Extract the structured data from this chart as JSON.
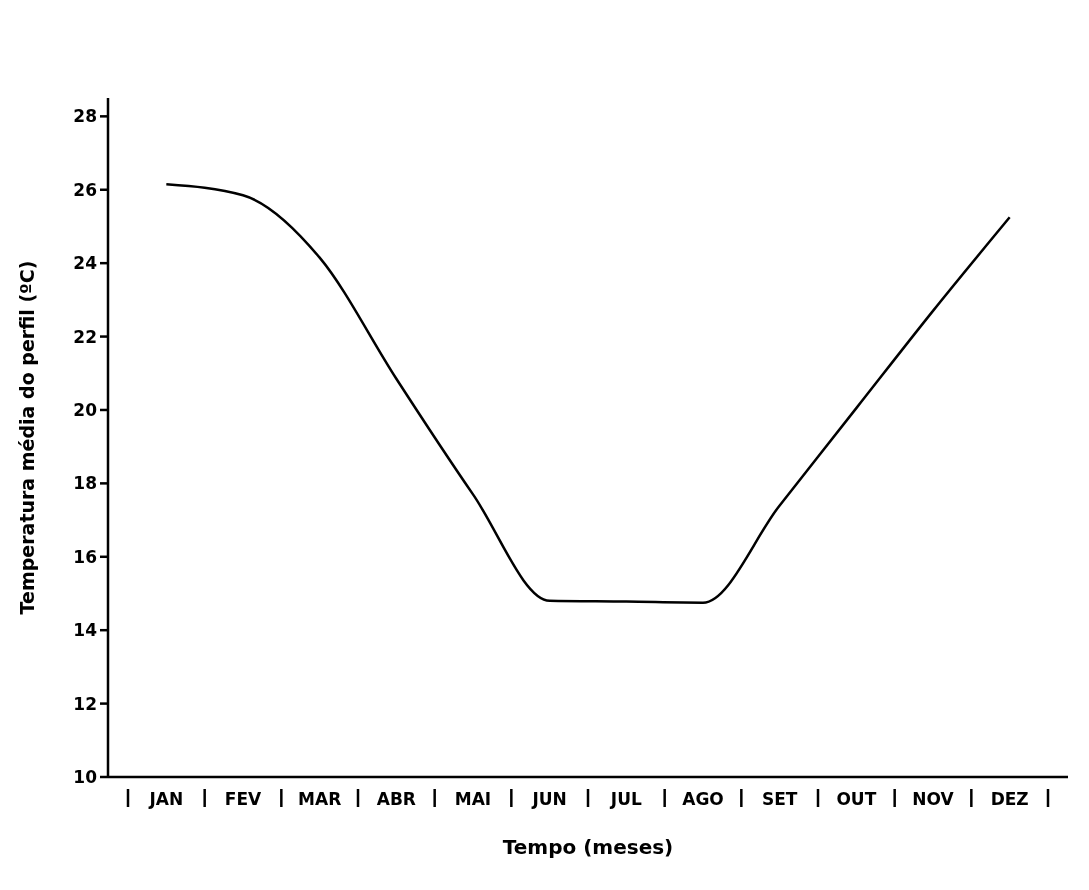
{
  "chart_data": {
    "type": "line",
    "xlabel": "Tempo (meses)",
    "ylabel": "Temperatura média do perfil (ºC)",
    "categories": [
      "JAN",
      "FEV",
      "MAR",
      "ABR",
      "MAI",
      "JUN",
      "JUL",
      "AGO",
      "SET",
      "OUT",
      "NOV",
      "DEZ"
    ],
    "series": [
      {
        "color": "#000000",
        "values": [
          26.15,
          25.85,
          24.15,
          20.85,
          17.7,
          14.8,
          14.78,
          14.75,
          17.4,
          20.05,
          22.7,
          25.25
        ]
      }
    ],
    "ylim": [
      10,
      28.5
    ],
    "yticks": [
      10,
      12,
      14,
      16,
      18,
      20,
      22,
      24,
      26,
      28
    ],
    "grid": false,
    "marker": "none",
    "line_style": "solid"
  }
}
